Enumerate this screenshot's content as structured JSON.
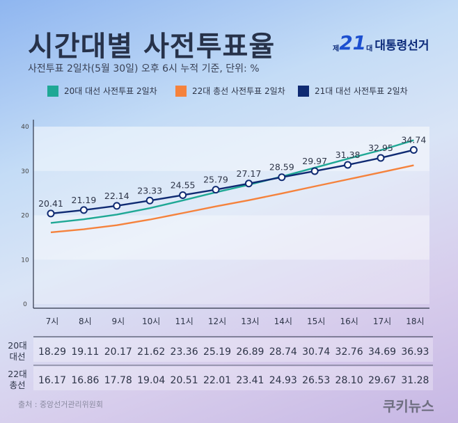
{
  "header": {
    "title": "시간대별 사전투표율",
    "subtitle": "사전투표 2일차(5월 30일) 오후 6시 누적 기준, 단위: %",
    "logo": {
      "prefix": "제",
      "number": "21",
      "suffix": "대",
      "text": "대통령선거"
    }
  },
  "chart_data": {
    "type": "line",
    "categories": [
      "7시",
      "8시",
      "9시",
      "10시",
      "11시",
      "12시",
      "13시",
      "14시",
      "15시",
      "16시",
      "17시",
      "18시"
    ],
    "ylim": [
      0,
      40
    ],
    "yticks": [
      "0",
      "10",
      "20",
      "30",
      "40"
    ],
    "series": [
      {
        "name": "20대 대선 사전투표 2일차",
        "color": "#1fa895",
        "values": [
          18.29,
          19.11,
          20.17,
          21.62,
          23.36,
          25.19,
          26.89,
          28.74,
          30.74,
          32.76,
          34.69,
          36.93
        ]
      },
      {
        "name": "22대 총선 사전투표 2일차",
        "color": "#f5823c",
        "values": [
          16.17,
          16.86,
          17.78,
          19.04,
          20.51,
          22.01,
          23.41,
          24.93,
          26.53,
          28.1,
          29.67,
          31.28
        ]
      },
      {
        "name": "21대 대선 사전투표 2일차",
        "color": "#0f2a72",
        "values": [
          20.41,
          21.19,
          22.14,
          23.33,
          24.55,
          25.79,
          27.17,
          28.59,
          29.97,
          31.38,
          32.95,
          34.74
        ],
        "labels": [
          "20.41",
          "21.19",
          "22.14",
          "23.33",
          "24.55",
          "25.79",
          "27.17",
          "28.59",
          "29.97",
          "31.38",
          "32.95",
          "34.74"
        ]
      }
    ],
    "legend": "top",
    "table": {
      "rows": [
        {
          "label": [
            "20대",
            "대선"
          ],
          "values": [
            "18.29",
            "19.11",
            "20.17",
            "21.62",
            "23.36",
            "25.19",
            "26.89",
            "28.74",
            "30.74",
            "32.76",
            "34.69",
            "36.93"
          ]
        },
        {
          "label": [
            "22대",
            "총선"
          ],
          "values": [
            "16.17",
            "16.86",
            "17.78",
            "19.04",
            "20.51",
            "22.01",
            "23.41",
            "24.93",
            "26.53",
            "28.10",
            "29.67",
            "31.28"
          ]
        }
      ]
    }
  },
  "footer": {
    "source": "출처 : 중앙선거관리위원회",
    "brand": "쿠키뉴스"
  }
}
